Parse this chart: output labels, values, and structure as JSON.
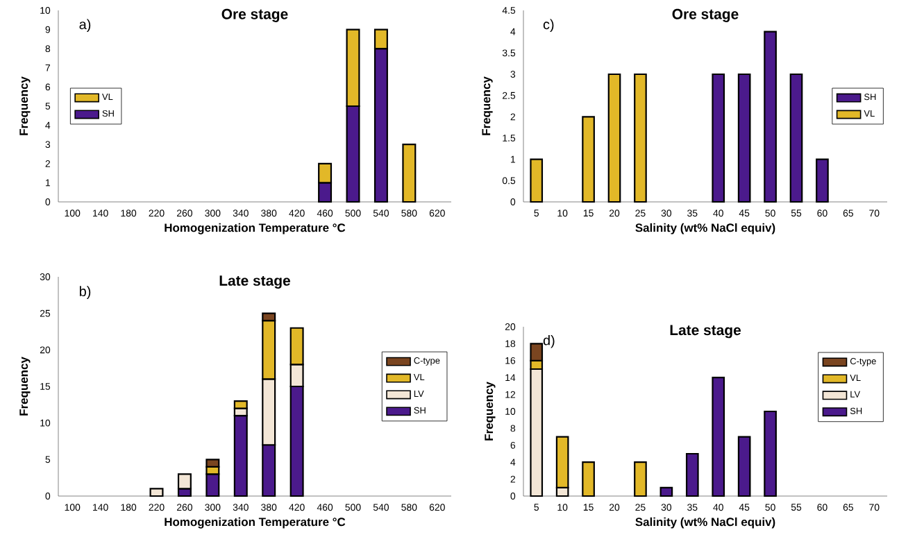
{
  "chart_data": [
    {
      "type": "bar",
      "stacked": true,
      "title": "Ore stage",
      "xlabel": "Homogenization Temperature °C",
      "ylabel": "Frequency",
      "annotations": [
        "a)"
      ],
      "legend": "left",
      "categories": [
        "100",
        "140",
        "180",
        "220",
        "260",
        "300",
        "340",
        "380",
        "420",
        "460",
        "500",
        "540",
        "580",
        "620"
      ],
      "series": [
        {
          "name": "SH",
          "color": "#4b1a8c",
          "values": [
            null,
            null,
            null,
            null,
            null,
            null,
            null,
            null,
            null,
            1,
            5,
            8,
            null,
            null
          ]
        },
        {
          "name": "VL",
          "color": "#e2b828",
          "values": [
            null,
            null,
            null,
            null,
            null,
            null,
            null,
            null,
            null,
            1,
            4,
            1,
            3,
            null
          ]
        }
      ],
      "ylim": [
        0,
        10
      ],
      "yticks": [
        0,
        1,
        2,
        3,
        4,
        5,
        6,
        7,
        8,
        9,
        10
      ]
    },
    {
      "type": "bar",
      "stacked": true,
      "title": "Late stage",
      "xlabel": "Homogenization Temperature °C",
      "ylabel": "Frequency",
      "annotations": [
        "b)"
      ],
      "legend": "right",
      "categories": [
        "100",
        "140",
        "180",
        "220",
        "260",
        "300",
        "340",
        "380",
        "420",
        "460",
        "500",
        "540",
        "580",
        "620"
      ],
      "series": [
        {
          "name": "SH",
          "color": "#4b1a8c",
          "values": [
            null,
            null,
            null,
            null,
            1,
            3,
            11,
            7,
            15,
            null,
            null,
            null,
            null,
            null
          ]
        },
        {
          "name": "LV",
          "color": "#f3e6d6",
          "values": [
            null,
            null,
            null,
            1,
            2,
            null,
            1,
            9,
            3,
            null,
            null,
            null,
            null,
            null
          ]
        },
        {
          "name": "VL",
          "color": "#e2b828",
          "values": [
            null,
            null,
            null,
            null,
            null,
            1,
            1,
            8,
            5,
            null,
            null,
            null,
            null,
            null
          ]
        },
        {
          "name": "C-type",
          "color": "#7a4520",
          "values": [
            null,
            null,
            null,
            null,
            null,
            1,
            null,
            1,
            null,
            null,
            null,
            null,
            null,
            null
          ]
        }
      ],
      "ylim": [
        0,
        30
      ],
      "yticks": [
        0,
        5,
        10,
        15,
        20,
        25,
        30
      ]
    },
    {
      "type": "bar",
      "stacked": true,
      "title": "Ore stage",
      "xlabel": "Salinity (wt% NaCl equiv)",
      "ylabel": "Frequency",
      "annotations": [
        "c)"
      ],
      "legend": "right",
      "categories": [
        "5",
        "10",
        "15",
        "20",
        "25",
        "30",
        "35",
        "40",
        "45",
        "50",
        "55",
        "60",
        "65",
        "70"
      ],
      "series": [
        {
          "name": "VL",
          "color": "#e2b828",
          "values": [
            1,
            null,
            2,
            3,
            3,
            null,
            null,
            null,
            null,
            null,
            null,
            null,
            null,
            null
          ]
        },
        {
          "name": "SH",
          "color": "#4b1a8c",
          "values": [
            null,
            null,
            null,
            null,
            null,
            null,
            null,
            3,
            3,
            4,
            3,
            1,
            null,
            null
          ]
        }
      ],
      "ylim": [
        0,
        4.5
      ],
      "yticks": [
        0,
        0.5,
        1,
        1.5,
        2,
        2.5,
        3,
        3.5,
        4,
        4.5
      ]
    },
    {
      "type": "bar",
      "stacked": true,
      "title": "Late stage",
      "xlabel": "Salinity (wt% NaCl equiv)",
      "ylabel": "Frequency",
      "annotations": [
        "d)"
      ],
      "legend": "top right",
      "categories": [
        "5",
        "10",
        "15",
        "20",
        "25",
        "30",
        "35",
        "40",
        "45",
        "50",
        "55",
        "60",
        "65",
        "70"
      ],
      "series": [
        {
          "name": "SH",
          "color": "#4b1a8c",
          "values": [
            null,
            null,
            null,
            null,
            null,
            1,
            5,
            14,
            7,
            10,
            null,
            null,
            null,
            null
          ]
        },
        {
          "name": "LV",
          "color": "#f3e6d6",
          "values": [
            15,
            1,
            null,
            null,
            null,
            null,
            null,
            null,
            null,
            null,
            null,
            null,
            null,
            null
          ]
        },
        {
          "name": "VL",
          "color": "#e2b828",
          "values": [
            1,
            6,
            4,
            null,
            4,
            null,
            null,
            null,
            null,
            null,
            null,
            null,
            null,
            null
          ]
        },
        {
          "name": "C-type",
          "color": "#7a4520",
          "values": [
            2,
            null,
            null,
            null,
            null,
            null,
            null,
            null,
            null,
            null,
            null,
            null,
            null,
            null
          ]
        }
      ],
      "ylim": [
        0,
        20
      ],
      "yticks": [
        0,
        2,
        4,
        6,
        8,
        10,
        12,
        14,
        16,
        18,
        20
      ]
    }
  ]
}
